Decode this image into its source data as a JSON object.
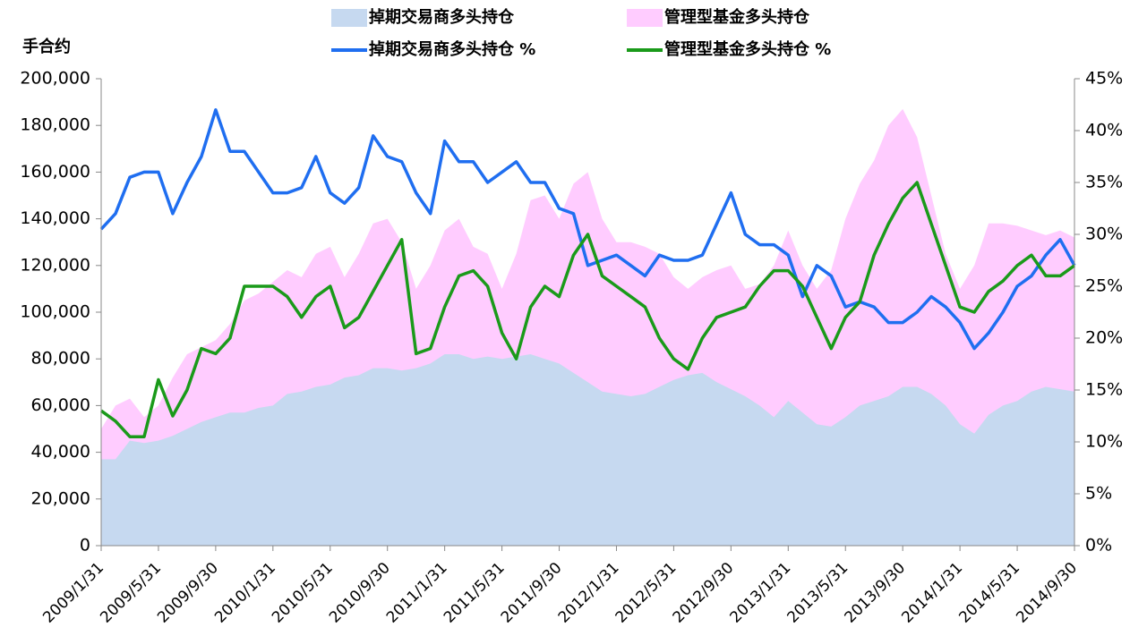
{
  "chart_data": {
    "type": "area-line",
    "y_label": "手合约",
    "categories": [
      "2009/1/31",
      null,
      null,
      null,
      "2009/5/31",
      null,
      null,
      null,
      "2009/9/30",
      null,
      null,
      null,
      "2010/1/31",
      null,
      null,
      null,
      "2010/5/31",
      null,
      null,
      null,
      "2010/9/30",
      null,
      null,
      null,
      "2011/1/31",
      null,
      null,
      null,
      "2011/5/31",
      null,
      null,
      null,
      "2011/9/30",
      null,
      null,
      null,
      "2012/1/31",
      null,
      null,
      null,
      "2012/5/31",
      null,
      null,
      null,
      "2012/9/30",
      null,
      null,
      null,
      "2013/1/31",
      null,
      null,
      null,
      "2013/5/31",
      null,
      null,
      null,
      "2013/9/30",
      null,
      null,
      null,
      "2014/1/31",
      null,
      null,
      null,
      "2014/5/31",
      null,
      null,
      null,
      "2014/9/30"
    ],
    "series": [
      {
        "name": "管理型基金多头持仓",
        "type": "area",
        "color": "#ffccff",
        "values": [
          50000,
          60000,
          63000,
          55000,
          60000,
          72000,
          82000,
          85000,
          88000,
          95000,
          105000,
          108000,
          113000,
          118000,
          115000,
          125000,
          128000,
          115000,
          125000,
          138000,
          140000,
          130000,
          110000,
          120000,
          135000,
          140000,
          128000,
          125000,
          110000,
          125000,
          148000,
          150000,
          140000,
          155000,
          160000,
          140000,
          130000,
          130000,
          128000,
          125000,
          115000,
          110000,
          115000,
          118000,
          120000,
          110000,
          112000,
          120000,
          135000,
          120000,
          110000,
          118000,
          140000,
          155000,
          165000,
          180000,
          187000,
          175000,
          150000,
          125000,
          110000,
          120000,
          138000,
          138000,
          137000,
          135000,
          133000,
          135000,
          132000
        ]
      },
      {
        "name": "掉期交易商多头持仓",
        "type": "area",
        "color": "#c6d9f0",
        "values": [
          37000,
          37000,
          45000,
          44000,
          45000,
          47000,
          50000,
          53000,
          55000,
          57000,
          57000,
          59000,
          60000,
          65000,
          66000,
          68000,
          69000,
          72000,
          73000,
          76000,
          76000,
          75000,
          76000,
          78000,
          82000,
          82000,
          80000,
          81000,
          80000,
          81000,
          82000,
          80000,
          78000,
          74000,
          70000,
          66000,
          65000,
          64000,
          65000,
          68000,
          71000,
          73000,
          74000,
          70000,
          67000,
          64000,
          60000,
          55000,
          62000,
          57000,
          52000,
          51000,
          55000,
          60000,
          62000,
          64000,
          68000,
          68000,
          65000,
          60000,
          52000,
          48000,
          56000,
          60000,
          62000,
          66000,
          68000,
          67000,
          66000
        ]
      },
      {
        "name": "掉期交易商多头持仓 %",
        "type": "line",
        "axis": "y2",
        "color": "#1f6ef0",
        "values": [
          30.5,
          32,
          35.5,
          36,
          36,
          32,
          35,
          37.5,
          42,
          38,
          38,
          36,
          34,
          34,
          34.5,
          37.5,
          34,
          33,
          34.5,
          39.5,
          37.5,
          37,
          34,
          32,
          39,
          37,
          37,
          35,
          36,
          37,
          35,
          35,
          32.5,
          32,
          27,
          27.5,
          28,
          27,
          26,
          28,
          27.5,
          27.5,
          28,
          31,
          34,
          30,
          29,
          29,
          28,
          24,
          27,
          26,
          23,
          23.5,
          23,
          21.5,
          21.5,
          22.5,
          24,
          23,
          21.5,
          19,
          20.5,
          22.5,
          25,
          26,
          28,
          29.5,
          27
        ]
      },
      {
        "name": "管理型基金多头持仓 %",
        "type": "line",
        "axis": "y2",
        "color": "#1a9a1a",
        "values": [
          13,
          12,
          10.5,
          10.5,
          16,
          12.5,
          15,
          19,
          18.5,
          20,
          25,
          25,
          25,
          24,
          22,
          24,
          25,
          21,
          22,
          24.5,
          27,
          29.5,
          18.5,
          19,
          23,
          26,
          26.5,
          25,
          20.5,
          18,
          23,
          25,
          24,
          28,
          30,
          26,
          25,
          24,
          23,
          20,
          18,
          17,
          20,
          22,
          22.5,
          23,
          25,
          26.5,
          26.5,
          25,
          22,
          19,
          22,
          23.5,
          28,
          31,
          33.5,
          35,
          31,
          27,
          23,
          22.5,
          24.5,
          25.5,
          27,
          28,
          26,
          26,
          27
        ]
      }
    ],
    "ylim": [
      0,
      200000
    ],
    "yticks": [
      0,
      {
        "value": 20000,
        "label": "20,000"
      },
      {
        "value": 40000,
        "label": "40,000"
      },
      {
        "value": 60000,
        "label": "60,000"
      },
      {
        "value": 80000,
        "label": "80,000"
      },
      {
        "value": 100000,
        "label": "100,000"
      },
      {
        "value": 120000,
        "label": "120,000"
      },
      {
        "value": 140000,
        "label": "140,000"
      },
      {
        "value": 160000,
        "label": "160,000"
      },
      {
        "value": 180000,
        "label": "180,000"
      },
      {
        "value": 200000,
        "label": "200,000"
      }
    ],
    "y2lim": [
      0,
      45
    ],
    "y2ticks": [
      {
        "value": 0,
        "label": "0%"
      },
      {
        "value": 5,
        "label": "5%"
      },
      {
        "value": 10,
        "label": "10%"
      },
      {
        "value": 15,
        "label": "15%"
      },
      {
        "value": 20,
        "label": "20%"
      },
      {
        "value": 25,
        "label": "25%"
      },
      {
        "value": 30,
        "label": "30%"
      },
      {
        "value": 35,
        "label": "35%"
      },
      {
        "value": 40,
        "label": "40%"
      },
      {
        "value": 45,
        "label": "45%"
      }
    ],
    "grid": false
  }
}
